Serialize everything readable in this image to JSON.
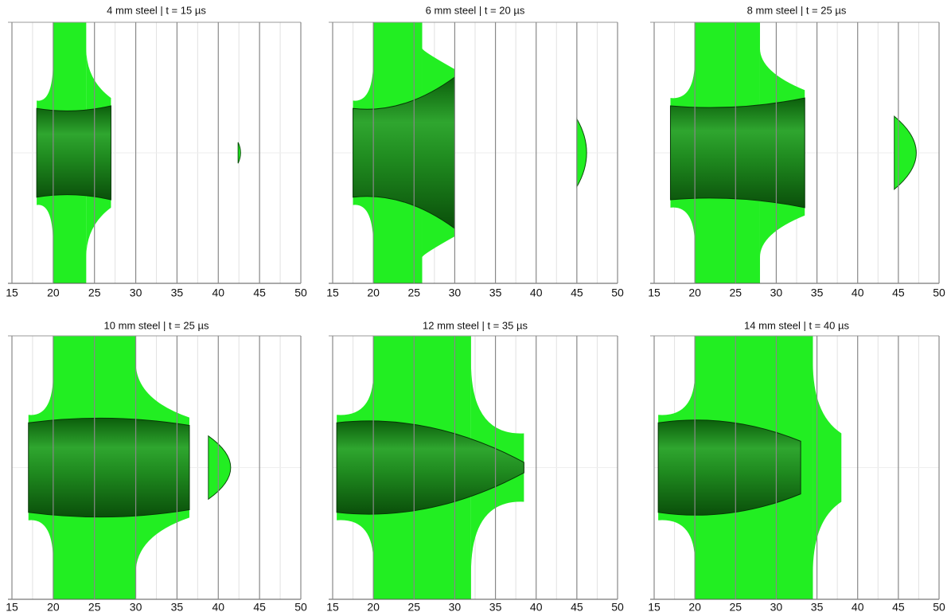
{
  "panels": [
    {
      "title": "4 mm steel | t = 15 µs",
      "xlim": [
        15,
        50
      ],
      "xticks": [
        15,
        20,
        25,
        30,
        35,
        40,
        45,
        50
      ]
    },
    {
      "title": "6 mm steel | t = 20 µs",
      "xlim": [
        15,
        50
      ],
      "xticks": [
        15,
        20,
        25,
        30,
        35,
        40,
        45,
        50
      ]
    },
    {
      "title": "8 mm steel | t = 25 µs",
      "xlim": [
        15,
        50
      ],
      "xticks": [
        15,
        20,
        25,
        30,
        35,
        40,
        45,
        50
      ]
    },
    {
      "title": "10 mm steel | t = 25 µs",
      "xlim": [
        15,
        50
      ],
      "xticks": [
        15,
        20,
        25,
        30,
        35,
        40,
        45,
        50
      ]
    },
    {
      "title": "12 mm steel | t = 35 µs",
      "xlim": [
        15,
        50
      ],
      "xticks": [
        15,
        20,
        25,
        30,
        35,
        40,
        45,
        50
      ]
    },
    {
      "title": "14 mm steel | t = 40 µs",
      "xlim": [
        15,
        50
      ],
      "xticks": [
        15,
        20,
        25,
        30,
        35,
        40,
        45,
        50
      ]
    }
  ]
}
